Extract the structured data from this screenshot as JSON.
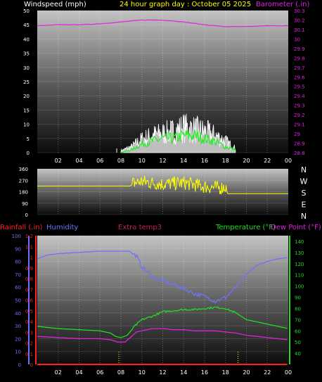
{
  "title": "24 hour graph day : October 05 2025",
  "colors": {
    "windspeed": "#ffffff",
    "gust_fill": "#dddddd",
    "wind_avg": "#22ee22",
    "barometer": "#e020e0",
    "wind_direction": "#ffff00",
    "rainfall": "#ff2020",
    "humidity": "#7070ff",
    "extra_temp": "#c02060",
    "temperature": "#22dd22",
    "dew_point": "#e020e0",
    "rain_marker": "#ffff00"
  },
  "hour_ticks": [
    "02",
    "04",
    "06",
    "08",
    "10",
    "12",
    "14",
    "16",
    "18",
    "20",
    "22",
    "00"
  ],
  "chart_data": [
    {
      "type": "line",
      "labels": {
        "left": "Windspeed (mph)",
        "right": "Barometer (.in)"
      },
      "x_range_hours": [
        0,
        24
      ],
      "x_ticks": [
        "02",
        "04",
        "06",
        "08",
        "10",
        "12",
        "14",
        "16",
        "18",
        "20",
        "22",
        "00"
      ],
      "left_axis": {
        "min": 0,
        "max": 50,
        "ticks": [
          "0",
          "5",
          "10",
          "15",
          "20",
          "25",
          "30",
          "35",
          "40",
          "45",
          "50"
        ]
      },
      "right_axis": {
        "min": 28.8,
        "max": 30.3,
        "ticks": [
          "28.8",
          "28.9",
          "29",
          "29.1",
          "29.2",
          "29.3",
          "29.4",
          "29.5",
          "29.6",
          "29.7",
          "29.8",
          "29.9",
          "30",
          "30.1",
          "30.2",
          "30.3"
        ]
      },
      "series": [
        {
          "key": "barometer",
          "axis": "right",
          "x": [
            0,
            2,
            4,
            6,
            8,
            10,
            12,
            14,
            16,
            18,
            20,
            22,
            24
          ],
          "y": [
            30.14,
            30.15,
            30.15,
            30.16,
            30.18,
            30.2,
            30.2,
            30.18,
            30.15,
            30.13,
            30.13,
            30.14,
            30.14
          ]
        },
        {
          "key": "windspeed",
          "axis": "left",
          "x": [
            8,
            9,
            10,
            11,
            12,
            13,
            14,
            15,
            16,
            17,
            18,
            19
          ],
          "y": [
            1,
            3,
            7,
            9,
            10,
            11,
            13,
            12,
            11,
            9,
            6,
            2
          ]
        },
        {
          "key": "wind_avg",
          "axis": "left",
          "x": [
            8,
            9,
            10,
            11,
            12,
            13,
            14,
            15,
            16,
            17,
            18,
            19
          ],
          "y": [
            0,
            1,
            3,
            4,
            5,
            5,
            6,
            6,
            5,
            4,
            2,
            1
          ]
        }
      ]
    },
    {
      "type": "line",
      "labels": {
        "right": [
          "N",
          "W",
          "S",
          "E",
          "N"
        ]
      },
      "x_range_hours": [
        0,
        24
      ],
      "left_axis": {
        "min": 0,
        "max": 360,
        "ticks": [
          "0",
          "90",
          "180",
          "270",
          "360"
        ]
      },
      "series": [
        {
          "key": "wind_direction",
          "x": [
            0,
            8.9,
            9.2,
            10,
            12,
            14,
            16,
            17.5,
            18,
            18.2,
            24
          ],
          "y": [
            225,
            225,
            250,
            260,
            240,
            250,
            220,
            210,
            220,
            165,
            165
          ]
        }
      ]
    },
    {
      "type": "line",
      "labels": {
        "rainfall": "Rainfall (.in)",
        "humidity": "Humidity",
        "extra_temp": "Extra temp3",
        "temperature": "Temperature (°F)",
        "dew_point": "Dew Point (°F)"
      },
      "x_range_hours": [
        0,
        24
      ],
      "x_ticks": [
        "02",
        "04",
        "06",
        "08",
        "10",
        "12",
        "14",
        "16",
        "18",
        "20",
        "22",
        "00"
      ],
      "humidity_axis": {
        "min": 0,
        "max": 100,
        "ticks": [
          "0",
          "10",
          "20",
          "30",
          "40",
          "50",
          "60",
          "70",
          "80",
          "90",
          "100"
        ]
      },
      "rain_axis": {
        "min": 0,
        "max": 1.2,
        "ticks": [
          "0",
          "0.1",
          "0.2",
          "0.3",
          "0.4",
          "0.5",
          "0.6",
          "0.7",
          "0.8",
          "0.9",
          "1",
          "1.1",
          "1.2"
        ]
      },
      "temp_axis": {
        "min": 30,
        "max": 145,
        "ticks": [
          "40",
          "50",
          "60",
          "70",
          "80",
          "90",
          "100",
          "110",
          "120",
          "130",
          "140"
        ]
      },
      "series": [
        {
          "key": "humidity",
          "axis": "humidity",
          "x": [
            0,
            1,
            2,
            4,
            6,
            8,
            8.8,
            9.5,
            10,
            11,
            12,
            13,
            14,
            15,
            16,
            17,
            18,
            19,
            20,
            21,
            22,
            23,
            24
          ],
          "y": [
            82,
            85,
            86,
            87,
            88,
            88,
            88,
            84,
            76,
            68,
            65,
            62,
            59,
            55,
            53,
            49,
            52,
            60,
            70,
            77,
            80,
            82,
            83
          ]
        },
        {
          "key": "temperature",
          "axis": "temp",
          "x": [
            0,
            2,
            4,
            6,
            7,
            7.5,
            8,
            8.6,
            9.3,
            10,
            11,
            12,
            13,
            14,
            15,
            16,
            17,
            18,
            19,
            20,
            21,
            22,
            23,
            24
          ],
          "y": [
            64,
            62,
            61,
            60,
            58,
            55,
            54,
            56,
            64,
            70,
            73,
            77,
            78,
            79,
            79,
            80,
            81,
            80,
            76,
            70,
            68,
            66,
            64,
            62
          ]
        },
        {
          "key": "dew_point",
          "axis": "temp",
          "x": [
            0,
            2,
            4,
            6,
            7,
            7.7,
            8.4,
            9.5,
            10,
            11,
            12,
            13,
            14,
            15,
            16,
            17,
            18,
            19,
            20,
            21,
            22,
            23,
            24
          ],
          "y": [
            55,
            54,
            53,
            53,
            52,
            50,
            50,
            59,
            60,
            62,
            62,
            61,
            61,
            60,
            60,
            60,
            59,
            58,
            56,
            55,
            54,
            53,
            52
          ]
        },
        {
          "key": "rainfall",
          "axis": "rain",
          "x": [
            0,
            24
          ],
          "y": [
            0,
            0
          ]
        }
      ],
      "rain_markers_hours": [
        7.8,
        19.2
      ]
    }
  ]
}
